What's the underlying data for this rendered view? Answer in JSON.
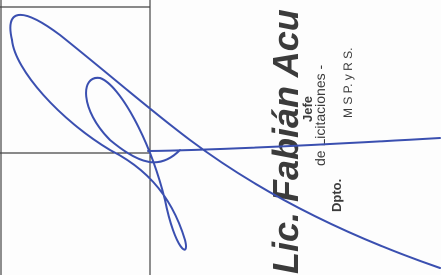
{
  "stamp": {
    "name": "Lic. Fabián Acu",
    "position": "Jefe",
    "department_prefix": "Dpto.",
    "department": "de Licitaciones -",
    "ministry": "M S P. y R S."
  }
}
